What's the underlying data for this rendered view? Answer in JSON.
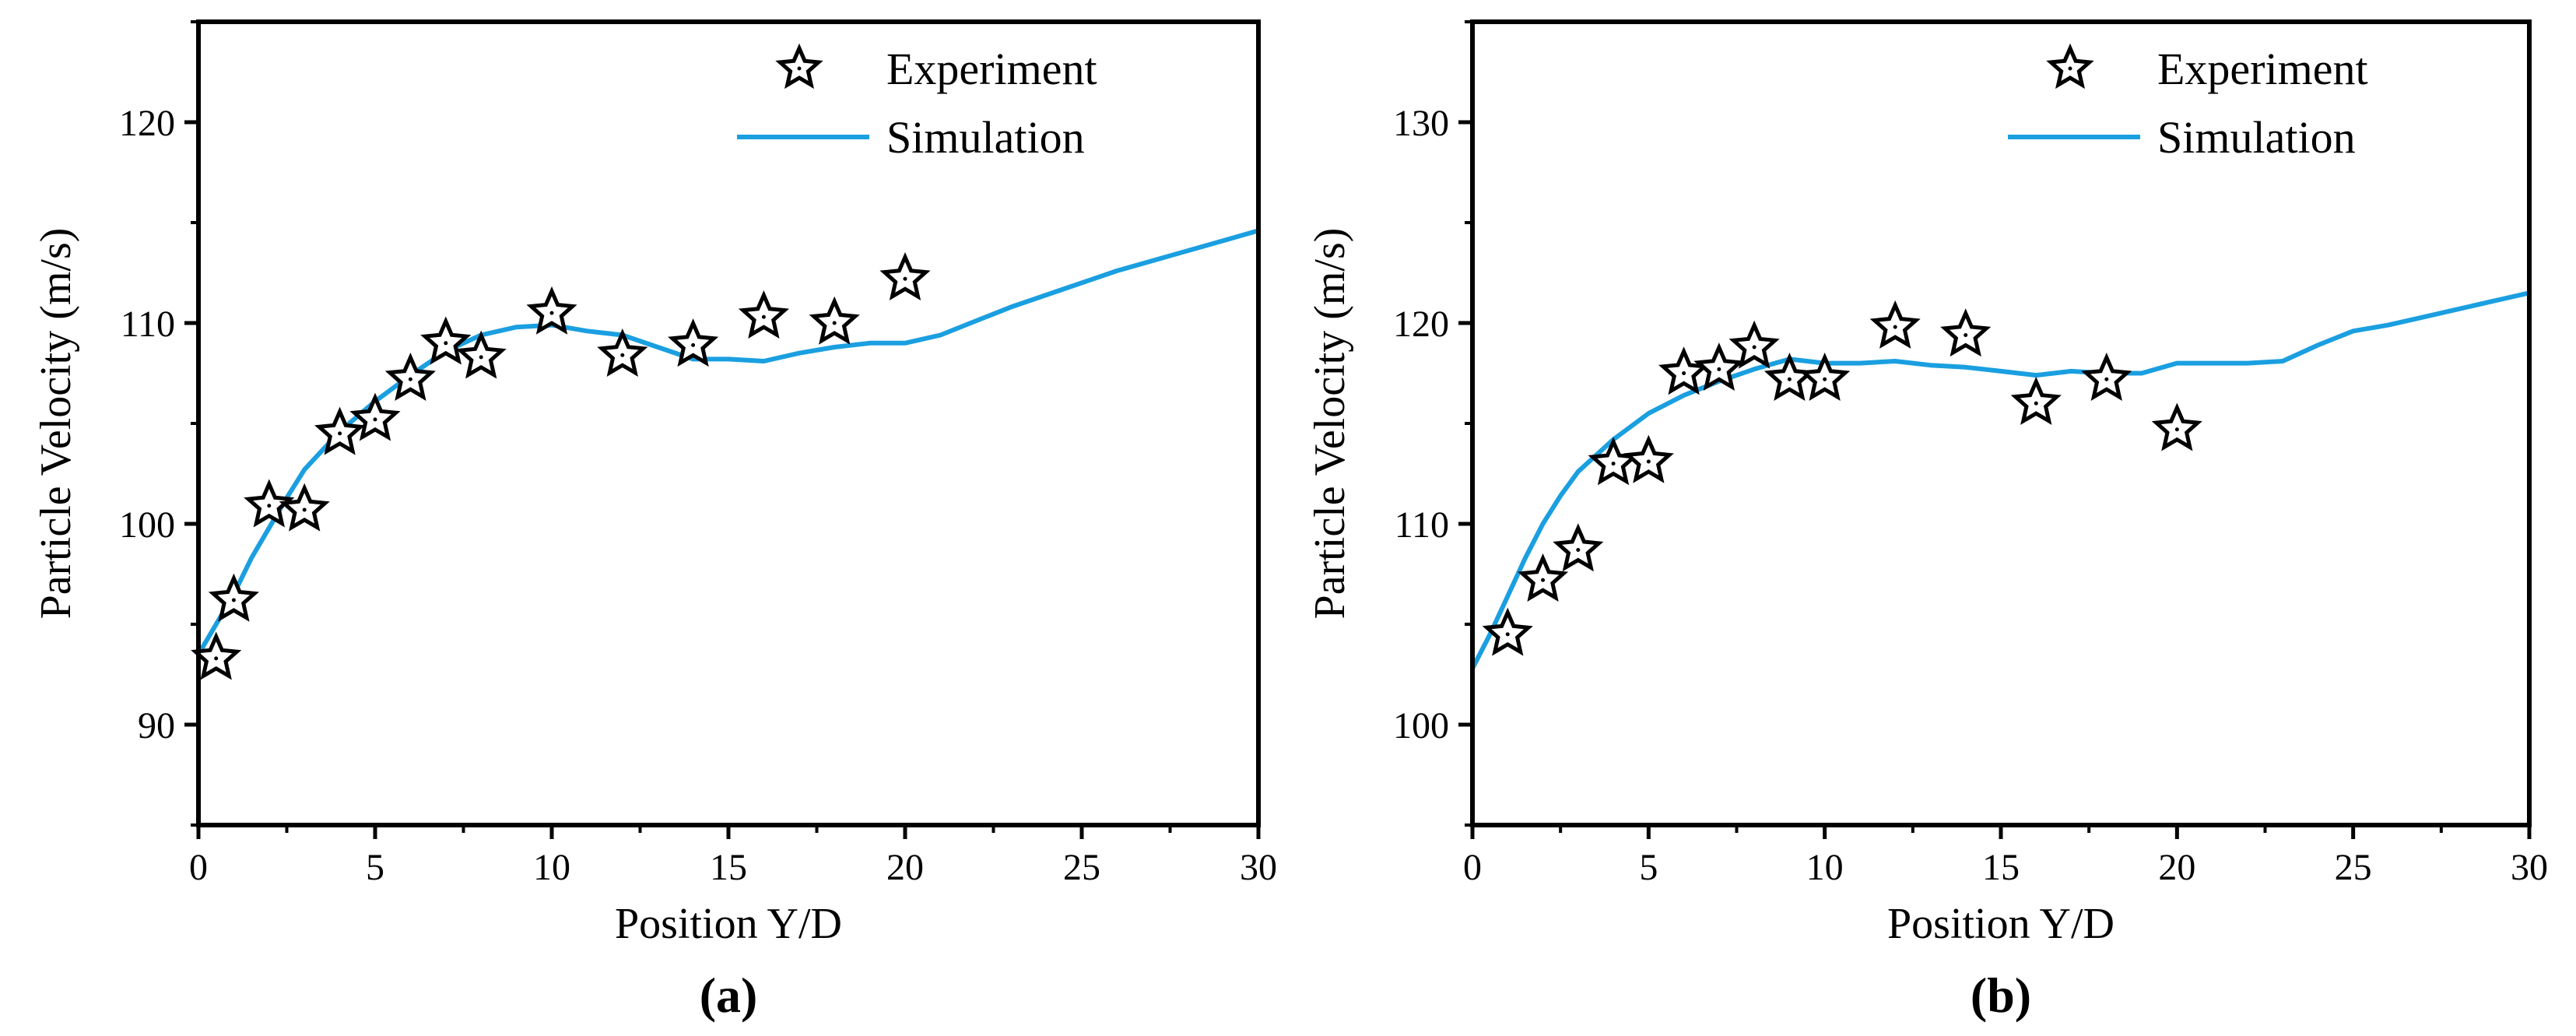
{
  "chart_data": [
    {
      "type": "scatter",
      "panel_label": "(a)",
      "xlabel": "Position Y/D",
      "ylabel": "Particle Velocity (m/s)",
      "xlim": [
        0,
        30
      ],
      "ylim": [
        85,
        125
      ],
      "xticks": [
        0,
        5,
        10,
        15,
        20,
        25,
        30
      ],
      "yticks": [
        90,
        100,
        110,
        120
      ],
      "grid": false,
      "legend_position": "top-right",
      "colors": {
        "simulation": "#1a9fe0",
        "experiment_fill": "#ffffff",
        "experiment_edge": "#000000"
      },
      "series": [
        {
          "name": "Experiment",
          "marker": "star-icon",
          "x": [
            0.5,
            1,
            2,
            3,
            4,
            5,
            6,
            7,
            8,
            10,
            12,
            14,
            16,
            18,
            20
          ],
          "y": [
            93.3,
            96.2,
            100.9,
            100.7,
            104.5,
            105.2,
            107.2,
            109.0,
            108.3,
            110.5,
            108.4,
            108.9,
            110.3,
            110.0,
            112.2
          ]
        },
        {
          "name": "Simulation",
          "type": "line",
          "x": [
            0,
            0.5,
            1,
            1.5,
            2,
            2.5,
            3,
            4,
            5,
            6,
            7,
            8,
            9,
            10,
            11,
            12,
            13,
            14,
            15,
            16,
            17,
            18,
            19,
            20,
            21,
            22,
            23,
            24,
            25,
            26,
            27,
            28,
            29,
            30
          ],
          "y": [
            93.5,
            95.0,
            96.5,
            98.3,
            99.8,
            101.3,
            102.7,
            104.6,
            106.1,
            107.4,
            108.6,
            109.4,
            109.8,
            109.9,
            109.6,
            109.4,
            108.8,
            108.2,
            108.2,
            108.1,
            108.5,
            108.8,
            109.0,
            109.0,
            109.4,
            110.1,
            110.8,
            111.4,
            112.0,
            112.6,
            113.1,
            113.6,
            114.1,
            114.6
          ]
        }
      ]
    },
    {
      "type": "scatter",
      "panel_label": "(b)",
      "xlabel": "Position Y/D",
      "ylabel": "Particle Velocity (m/s)",
      "xlim": [
        0,
        30
      ],
      "ylim": [
        95,
        135
      ],
      "xticks": [
        0,
        5,
        10,
        15,
        20,
        25,
        30
      ],
      "yticks": [
        100,
        110,
        120,
        130
      ],
      "grid": false,
      "legend_position": "top-right",
      "colors": {
        "simulation": "#1a9fe0",
        "experiment_fill": "#ffffff",
        "experiment_edge": "#000000"
      },
      "series": [
        {
          "name": "Experiment",
          "marker": "star-icon",
          "x": [
            1,
            2,
            3,
            4,
            5,
            6,
            7,
            8,
            9,
            10,
            12,
            14,
            16,
            18,
            20
          ],
          "y": [
            104.5,
            107.2,
            108.7,
            113.0,
            113.1,
            117.5,
            117.7,
            118.8,
            117.2,
            117.2,
            119.8,
            119.4,
            116.0,
            117.2,
            114.7
          ]
        },
        {
          "name": "Simulation",
          "type": "line",
          "x": [
            0,
            0.5,
            1,
            1.5,
            2,
            2.5,
            3,
            3.5,
            4,
            5,
            6,
            7,
            8,
            9,
            10,
            11,
            12,
            13,
            14,
            15,
            16,
            17,
            18,
            19,
            20,
            21,
            22,
            23,
            24,
            25,
            26,
            27,
            28,
            29,
            30
          ],
          "y": [
            102.8,
            104.5,
            106.4,
            108.3,
            110.0,
            111.4,
            112.6,
            113.4,
            114.2,
            115.5,
            116.4,
            117.1,
            117.7,
            118.2,
            118.0,
            118.0,
            118.1,
            117.9,
            117.8,
            117.6,
            117.4,
            117.6,
            117.5,
            117.5,
            118.0,
            118.0,
            118.0,
            118.1,
            118.9,
            119.6,
            119.9,
            120.3,
            120.7,
            121.1,
            121.5
          ]
        }
      ]
    }
  ]
}
